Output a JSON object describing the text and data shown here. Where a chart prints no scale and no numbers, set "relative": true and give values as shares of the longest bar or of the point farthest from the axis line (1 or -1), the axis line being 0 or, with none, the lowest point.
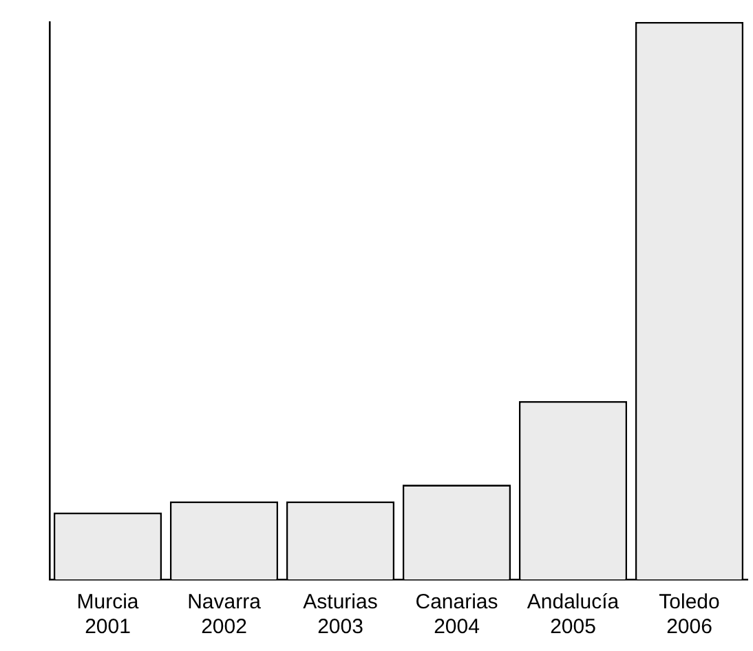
{
  "chart_data": {
    "type": "bar",
    "relative": true,
    "categories": [
      "Murcia\n2001",
      "Navarra\n2002",
      "Asturias\n2003",
      "Canarias\n2004",
      "Andalucía\n2005",
      "Toledo\n2006"
    ],
    "values": [
      0.12,
      0.14,
      0.14,
      0.17,
      0.32,
      1
    ],
    "color": "#ebebeb",
    "grid": false,
    "legend": false
  }
}
